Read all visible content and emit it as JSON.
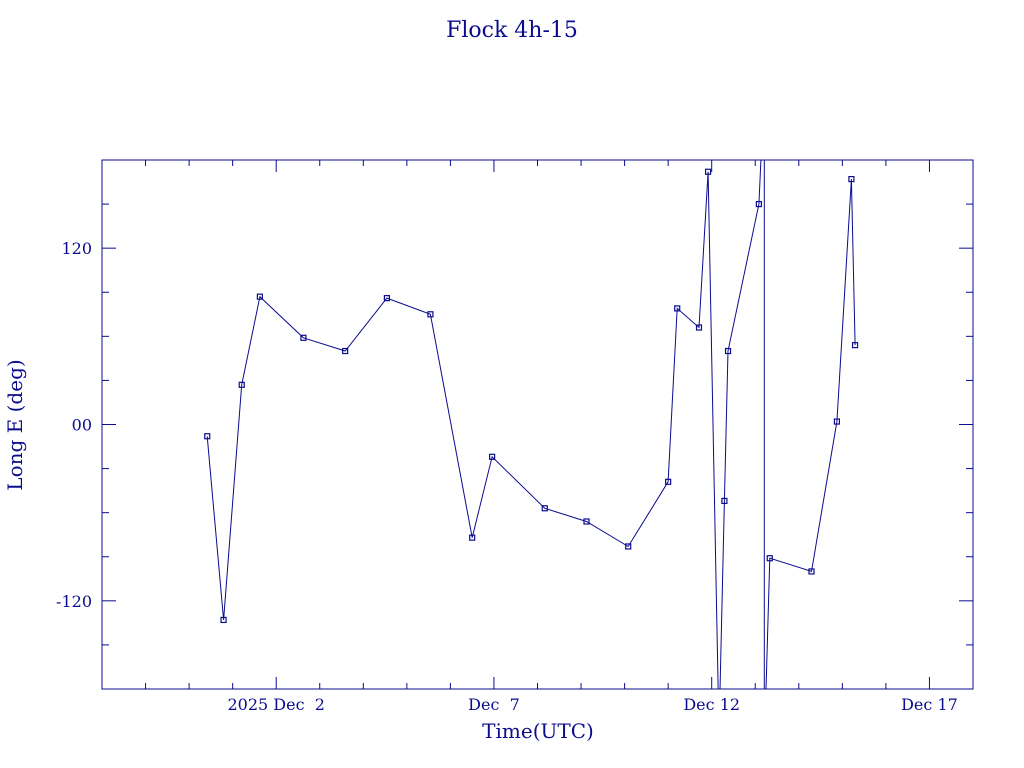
{
  "chart_data": {
    "type": "line",
    "title": "Flock 4h-15",
    "xlabel": "Time(UTC)",
    "ylabel": "Long E (deg)",
    "xlim": [
      "2025-11-28 00:00",
      "2025-12-18 00:00"
    ],
    "ylim": [
      -180,
      180
    ],
    "x_tick_labels": [
      {
        "at": "2025-12-02 00:00",
        "label": "2025 Dec  2"
      },
      {
        "at": "2025-12-07 00:00",
        "label": "Dec  7"
      },
      {
        "at": "2025-12-12 00:00",
        "label": "Dec 12"
      },
      {
        "at": "2025-12-17 00:00",
        "label": "Dec 17"
      }
    ],
    "y_tick_labels": [
      {
        "at": 120,
        "label": "120"
      },
      {
        "at": 0,
        "label": "00"
      },
      {
        "at": -120,
        "label": "-120"
      }
    ],
    "grid": false,
    "color": "#0b0b8f",
    "series": [
      {
        "points": [
          {
            "x": "2025-11-30 10:00",
            "y": -8
          },
          {
            "x": "2025-11-30 19:00",
            "y": -133
          },
          {
            "x": "2025-12-01 05:00",
            "y": 27
          },
          {
            "x": "2025-12-01 15:00",
            "y": 87
          },
          {
            "x": "2025-12-02 15:00",
            "y": 59
          },
          {
            "x": "2025-12-03 14:00",
            "y": 50
          },
          {
            "x": "2025-12-04 13:00",
            "y": 86
          },
          {
            "x": "2025-12-05 13:00",
            "y": 75
          },
          {
            "x": "2025-12-06 12:00",
            "y": -77
          },
          {
            "x": "2025-12-06 23:00",
            "y": -22
          },
          {
            "x": "2025-12-08 04:00",
            "y": -57
          },
          {
            "x": "2025-12-09 03:00",
            "y": -66
          },
          {
            "x": "2025-12-10 02:00",
            "y": -83
          },
          {
            "x": "2025-12-11 00:00",
            "y": -39
          },
          {
            "x": "2025-12-11 05:00",
            "y": 79
          },
          {
            "x": "2025-12-11 17:00",
            "y": 66
          },
          {
            "x": "2025-12-11 22:00",
            "y": 172
          },
          {
            "x": "2025-12-12 04:00",
            "y": -210
          },
          {
            "x": "2025-12-12 07:00",
            "y": -52
          },
          {
            "x": "2025-12-12 09:00",
            "y": 50
          },
          {
            "x": "2025-12-13 02:00",
            "y": 150
          },
          {
            "x": "2025-12-13 05:00",
            "y": 230
          },
          {
            "x": "2025-12-13 05:00",
            "y": -220
          },
          {
            "x": "2025-12-13 08:00",
            "y": -91
          },
          {
            "x": "2025-12-14 07:00",
            "y": -100
          },
          {
            "x": "2025-12-14 21:00",
            "y": 2
          },
          {
            "x": "2025-12-15 05:00",
            "y": 167
          },
          {
            "x": "2025-12-15 07:00",
            "y": 54
          }
        ]
      }
    ]
  }
}
